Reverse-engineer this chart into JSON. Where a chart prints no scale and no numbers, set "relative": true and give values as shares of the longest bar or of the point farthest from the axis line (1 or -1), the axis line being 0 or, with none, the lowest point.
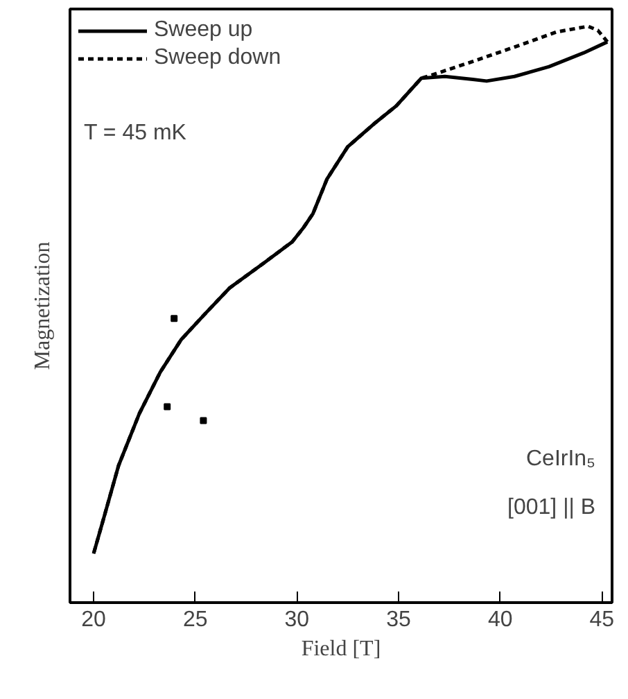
{
  "chart_data": {
    "type": "line",
    "relative": true,
    "xlabel": "Field [T]",
    "ylabel": "Magnetization",
    "xlim": [
      18.84,
      45.5
    ],
    "xticks": [
      20,
      25,
      30,
      35,
      40,
      45
    ],
    "legend": "top left",
    "grid": false,
    "annotations": [
      "T = 45 mK",
      "CeIrIn₅",
      "[001] || B"
    ],
    "series": [
      {
        "name": "Sweep up",
        "color": "#000000",
        "line_style": "solid",
        "x": [
          20,
          20.55,
          21.23,
          22.25,
          23.28,
          24.3,
          25.4,
          26.69,
          28.4,
          29.77,
          30.31,
          30.79,
          31.48,
          32.5,
          33.87,
          34.89,
          36.12,
          37.28,
          38.65,
          39.33,
          40.7,
          42.4,
          44.11,
          45.27
        ],
        "values": [
          0.085,
          0.153,
          0.238,
          0.328,
          0.4,
          0.456,
          0.498,
          0.546,
          0.59,
          0.626,
          0.65,
          0.675,
          0.735,
          0.791,
          0.833,
          0.862,
          0.91,
          0.913,
          0.908,
          0.905,
          0.913,
          0.93,
          0.954,
          0.973
        ]
      },
      {
        "name": "Sweep down",
        "color": "#000000",
        "line_style": "dashed",
        "x": [
          45.27,
          44.8,
          44.32,
          42.75,
          40.7,
          38.65,
          36.6,
          36.12,
          34.89,
          33.87,
          32.5,
          31.48,
          30.79,
          30.31,
          29.77,
          28.4,
          26.69,
          25.4,
          24.3,
          23.28,
          22.25,
          21.23,
          20.55,
          20
        ],
        "values": [
          0.973,
          0.993,
          1.0,
          0.99,
          0.964,
          0.939,
          0.915,
          0.91,
          0.862,
          0.833,
          0.791,
          0.735,
          0.675,
          0.65,
          0.626,
          0.59,
          0.546,
          0.498,
          0.456,
          0.4,
          0.328,
          0.238,
          0.153,
          0.085
        ]
      },
      {
        "type": "scatter",
        "color": "#000000",
        "marker": "square",
        "x": [
          23.96,
          23.62,
          25.4
        ],
        "values": [
          0.493,
          0.34,
          0.316
        ]
      }
    ]
  }
}
